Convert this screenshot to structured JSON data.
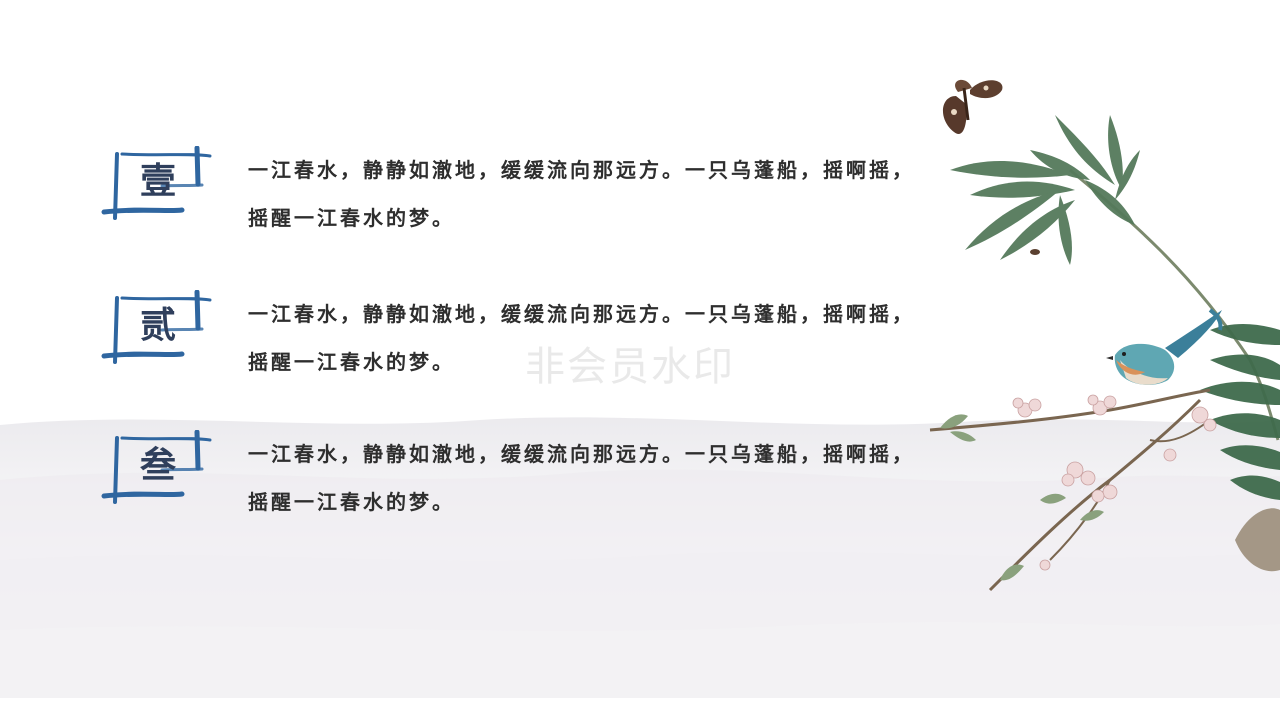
{
  "items": [
    {
      "numeral": "壹",
      "text": "一江春水，静静如澈地，缓缓流向那远方。一只乌蓬船，摇啊摇，摇醒一江春水的梦。"
    },
    {
      "numeral": "贰",
      "text": "一江春水，静静如澈地，缓缓流向那远方。一只乌蓬船，摇啊摇，摇醒一江春水的梦。"
    },
    {
      "numeral": "叁",
      "text": "一江春水，静静如澈地，缓缓流向那远方。一只乌蓬船，摇啊摇，摇醒一江春水的梦。"
    }
  ],
  "watermark": "非会员水印",
  "colors": {
    "accent": "#2f66a0",
    "text": "#2e2e2e",
    "numeral": "#2f3f5c"
  }
}
